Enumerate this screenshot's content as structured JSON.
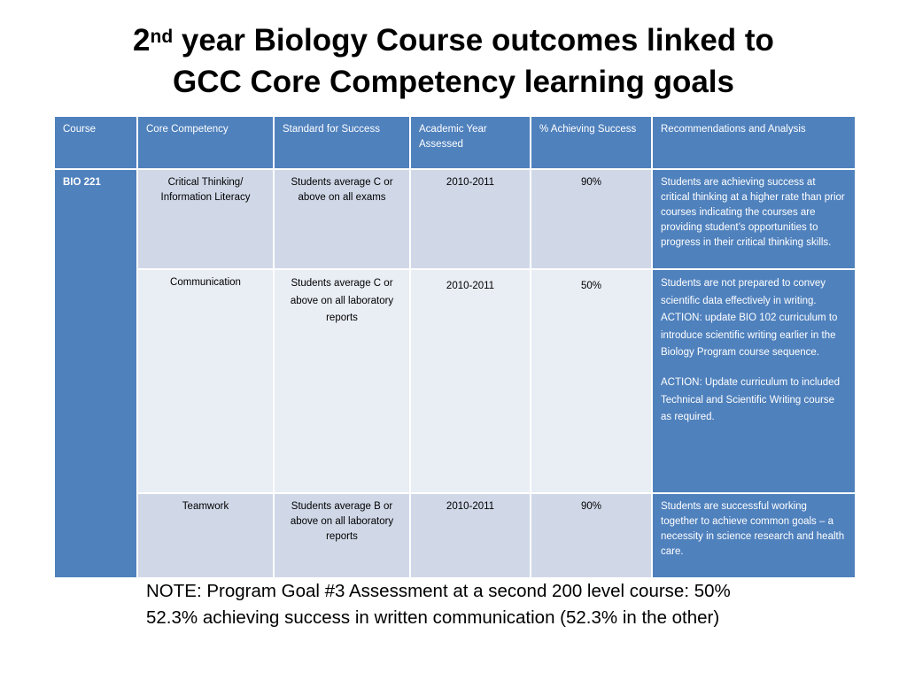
{
  "title": {
    "line1_num": "2",
    "line1_sup": "nd",
    "line1_rest": " year Biology Course outcomes linked to",
    "line2": "GCC Core Competency learning goals"
  },
  "table": {
    "headers": [
      "Course",
      "Core Competency",
      "Standard for Success",
      "Academic Year Assessed",
      "% Achieving Success",
      "Recommendations and Analysis"
    ],
    "course": "BIO 221",
    "rows": [
      {
        "competency": "Critical Thinking/ Information Literacy",
        "standard": "Students average C or above on all exams",
        "year": "2010-2011",
        "percent": "90%",
        "recommendations": [
          "Students are achieving success at critical thinking at a higher rate than prior courses indicating the courses are providing student’s opportunities to progress in their critical thinking skills."
        ]
      },
      {
        "competency": "Communication",
        "standard": "Students average C or above on all laboratory reports",
        "year": "2010-2011",
        "percent": "50%",
        "recommendations": [
          "Students are not prepared to convey scientific data effectively in writing.",
          "ACTION:  update BIO 102 curriculum to introduce scientific writing earlier in the Biology Program course sequence.",
          "ACTION:  Update curriculum to included Technical and Scientific Writing course as required."
        ]
      },
      {
        "competency": "Teamwork",
        "standard": "Students average B or above on all laboratory reports",
        "year": "2010-2011",
        "percent": "90%",
        "recommendations": [
          "Students are successful working together to achieve common goals – a necessity in science research and health care."
        ]
      }
    ]
  },
  "note": "NOTE:  Program Goal #3 Assessment at a second 200 level course:  50% 52.3% achieving success in written communication  (52.3% in the other)"
}
